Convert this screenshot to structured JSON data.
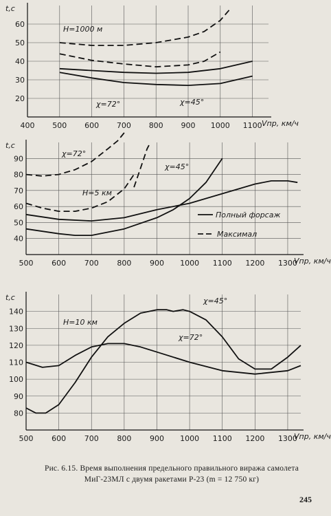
{
  "caption": {
    "line1": "Рис. 6.15. Время выполнения предельного правильного виража самолета",
    "line2": "МиГ-23МЛ с двумя ракетами Р-23 (m = 12 750 кг)"
  },
  "page_number": "245",
  "chart_data": [
    {
      "type": "line",
      "ylabel": "t,c",
      "xlabel": "Vпр, км/ч",
      "xlim": [
        400,
        1150
      ],
      "ylim": [
        10,
        70
      ],
      "xticks": [
        400,
        500,
        600,
        700,
        800,
        900,
        1000,
        1100
      ],
      "yticks": [
        20,
        30,
        40,
        50,
        60
      ],
      "annotations": [
        "H=1000 м",
        "χ=72°",
        "χ=45°"
      ],
      "grid": true,
      "series": [
        {
          "style": "dashed",
          "x": [
            500,
            600,
            700,
            800,
            900,
            950,
            1000,
            1030
          ],
          "values": [
            50,
            48.5,
            48.5,
            50,
            53,
            56,
            62,
            68
          ]
        },
        {
          "style": "dashed",
          "x": [
            500,
            600,
            700,
            800,
            900,
            950,
            1000
          ],
          "values": [
            44,
            40.5,
            38.5,
            37,
            38,
            40,
            45
          ]
        },
        {
          "style": "solid",
          "x": [
            500,
            600,
            700,
            800,
            900,
            1000,
            1100
          ],
          "values": [
            36,
            35,
            34,
            33.5,
            34,
            36,
            40
          ]
        },
        {
          "style": "solid",
          "x": [
            500,
            600,
            700,
            800,
            900,
            1000,
            1100
          ],
          "values": [
            34,
            31,
            28.5,
            27.5,
            27,
            28,
            32
          ]
        }
      ]
    },
    {
      "type": "line",
      "ylabel": "t,c",
      "xlabel": "Vпр, км/ч",
      "xlim": [
        500,
        1340
      ],
      "ylim": [
        30,
        100
      ],
      "xticks": [
        500,
        600,
        700,
        800,
        900,
        1000,
        1100,
        1200,
        1300
      ],
      "yticks": [
        40,
        50,
        60,
        70,
        80,
        90
      ],
      "annotations": [
        "H=5 км",
        "χ=72°",
        "χ=45°"
      ],
      "legend": [
        "Полный форсаж",
        "Максимал"
      ],
      "grid": true,
      "series": [
        {
          "style": "dashed",
          "x": [
            500,
            550,
            600,
            650,
            700,
            750,
            780,
            800
          ],
          "values": [
            80,
            79,
            80,
            83,
            88,
            96,
            101,
            106
          ]
        },
        {
          "style": "dashed",
          "x": [
            500,
            550,
            600,
            650,
            700,
            750,
            800,
            830
          ],
          "values": [
            62,
            59,
            57,
            57,
            59,
            63,
            71,
            80
          ]
        },
        {
          "style": "dashed",
          "x": [
            830,
            850,
            870,
            880
          ],
          "values": [
            72,
            84,
            96,
            100
          ]
        },
        {
          "style": "solid",
          "x": [
            500,
            600,
            700,
            800,
            900,
            1000,
            1100,
            1200,
            1250,
            1300,
            1330
          ],
          "values": [
            55,
            52,
            51,
            53,
            58,
            62,
            68,
            74,
            76,
            76,
            75
          ]
        },
        {
          "style": "solid",
          "x": [
            500,
            600,
            650,
            700,
            800,
            900,
            950,
            1000,
            1050,
            1100
          ],
          "values": [
            46,
            43,
            42,
            42,
            46,
            53,
            58,
            65,
            75,
            90
          ]
        }
      ]
    },
    {
      "type": "line",
      "ylabel": "t,c",
      "xlabel": "Vпр, км/ч",
      "xlim": [
        500,
        1340
      ],
      "ylim": [
        70,
        150
      ],
      "xticks": [
        500,
        600,
        700,
        800,
        900,
        1000,
        1100,
        1200,
        1300
      ],
      "yticks": [
        80,
        90,
        100,
        110,
        120,
        130,
        140
      ],
      "annotations": [
        "H=10 км",
        "χ=45°",
        "χ=72°"
      ],
      "grid": true,
      "series": [
        {
          "name": "χ=72°",
          "style": "solid",
          "x": [
            500,
            550,
            600,
            650,
            700,
            750,
            800,
            850,
            900,
            1000,
            1100,
            1200,
            1300,
            1340
          ],
          "values": [
            110,
            107,
            108,
            114,
            119,
            121,
            121,
            119,
            116,
            110,
            105,
            103,
            105,
            108
          ]
        },
        {
          "name": "χ=45°",
          "style": "solid",
          "x": [
            500,
            530,
            560,
            600,
            650,
            700,
            750,
            800,
            850,
            900,
            930,
            950,
            980,
            1000,
            1050,
            1100,
            1150,
            1200,
            1250,
            1300,
            1340
          ],
          "values": [
            83,
            80,
            80,
            85,
            98,
            113,
            125,
            133,
            139,
            141,
            141,
            140,
            141,
            140,
            135,
            125,
            112,
            106,
            106,
            113,
            120
          ]
        }
      ]
    }
  ]
}
